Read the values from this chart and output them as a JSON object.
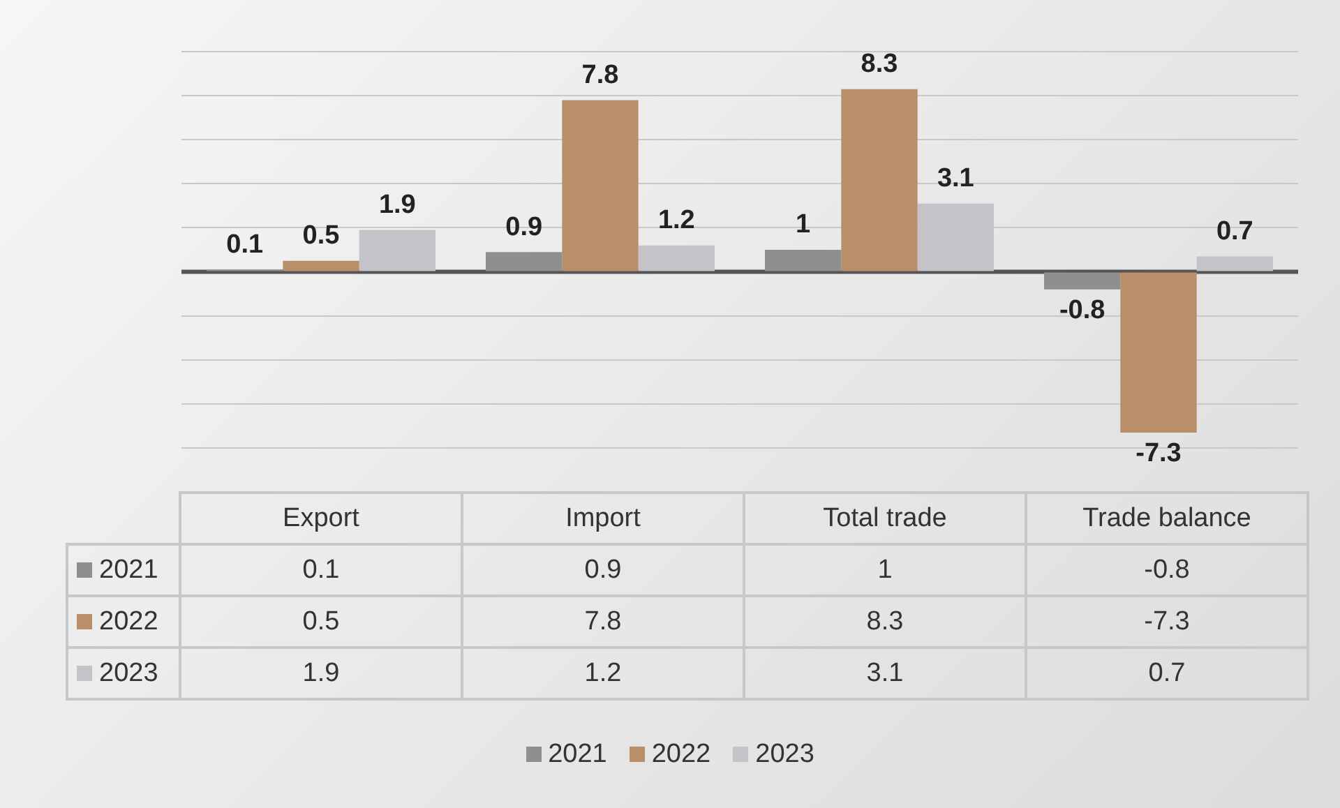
{
  "chart_data": {
    "type": "bar",
    "categories": [
      "Export",
      "Import",
      "Total trade",
      "Trade balance"
    ],
    "series": [
      {
        "name": "2021",
        "color": "#8f8f8f",
        "values": [
          0.1,
          0.9,
          1,
          -0.8
        ],
        "value_labels": [
          "0.1",
          "0.9",
          "1",
          "-0.8"
        ]
      },
      {
        "name": "2022",
        "color": "#b88f69",
        "values": [
          0.5,
          7.8,
          8.3,
          -7.3
        ],
        "value_labels": [
          "0.5",
          "7.8",
          "8.3",
          "-7.3"
        ]
      },
      {
        "name": "2023",
        "color": "#c4c4c8",
        "values": [
          1.9,
          1.2,
          3.1,
          0.7
        ],
        "value_labels": [
          "1.9",
          "1.2",
          "3.1",
          "0.7"
        ]
      }
    ],
    "annotations": [
      "0.1",
      "0.9",
      "1",
      "-0.8",
      "0.5",
      "7.8",
      "8.3",
      "-7.3",
      "1.9",
      "1.2",
      "3.1",
      "0.7"
    ],
    "ylim": [
      -8,
      10
    ],
    "grid": "y",
    "legend": "bottom",
    "ref_lines": [
      {
        "axis": "y",
        "value": 0,
        "color": "#555555"
      }
    ]
  }
}
